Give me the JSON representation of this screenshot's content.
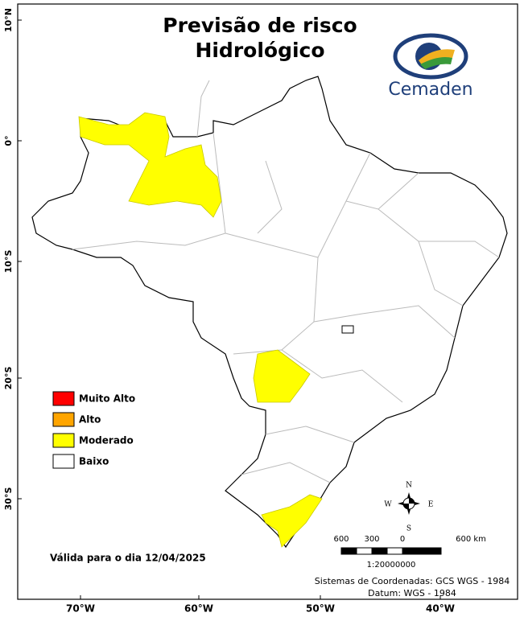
{
  "title_lines": [
    "Previsão de risco",
    "Hidrológico"
  ],
  "logo_text": "Cemaden",
  "latitude_labels": [
    "10°N",
    "0°",
    "10°S",
    "20°S",
    "30°S"
  ],
  "longitude_labels": [
    "70°W",
    "60°W",
    "50°W",
    "40°W"
  ],
  "legend": [
    {
      "label": "Muito Alto",
      "color": "#ff0000"
    },
    {
      "label": "Alto",
      "color": "#ffa500"
    },
    {
      "label": "Moderado",
      "color": "#ffff00"
    },
    {
      "label": "Baixo",
      "color": "#ffffff"
    }
  ],
  "validity": "Válida para o dia 12/04/2025",
  "compass": {
    "north": "N",
    "south": "S",
    "east": "E",
    "west": "W"
  },
  "scale": {
    "labels": [
      "600",
      "300",
      "0",
      "600 km"
    ],
    "ratio": "1:20000000"
  },
  "footer": [
    "Sistemas de Coordenadas: GCS WGS - 1984",
    "Datum: WGS - 1984"
  ]
}
